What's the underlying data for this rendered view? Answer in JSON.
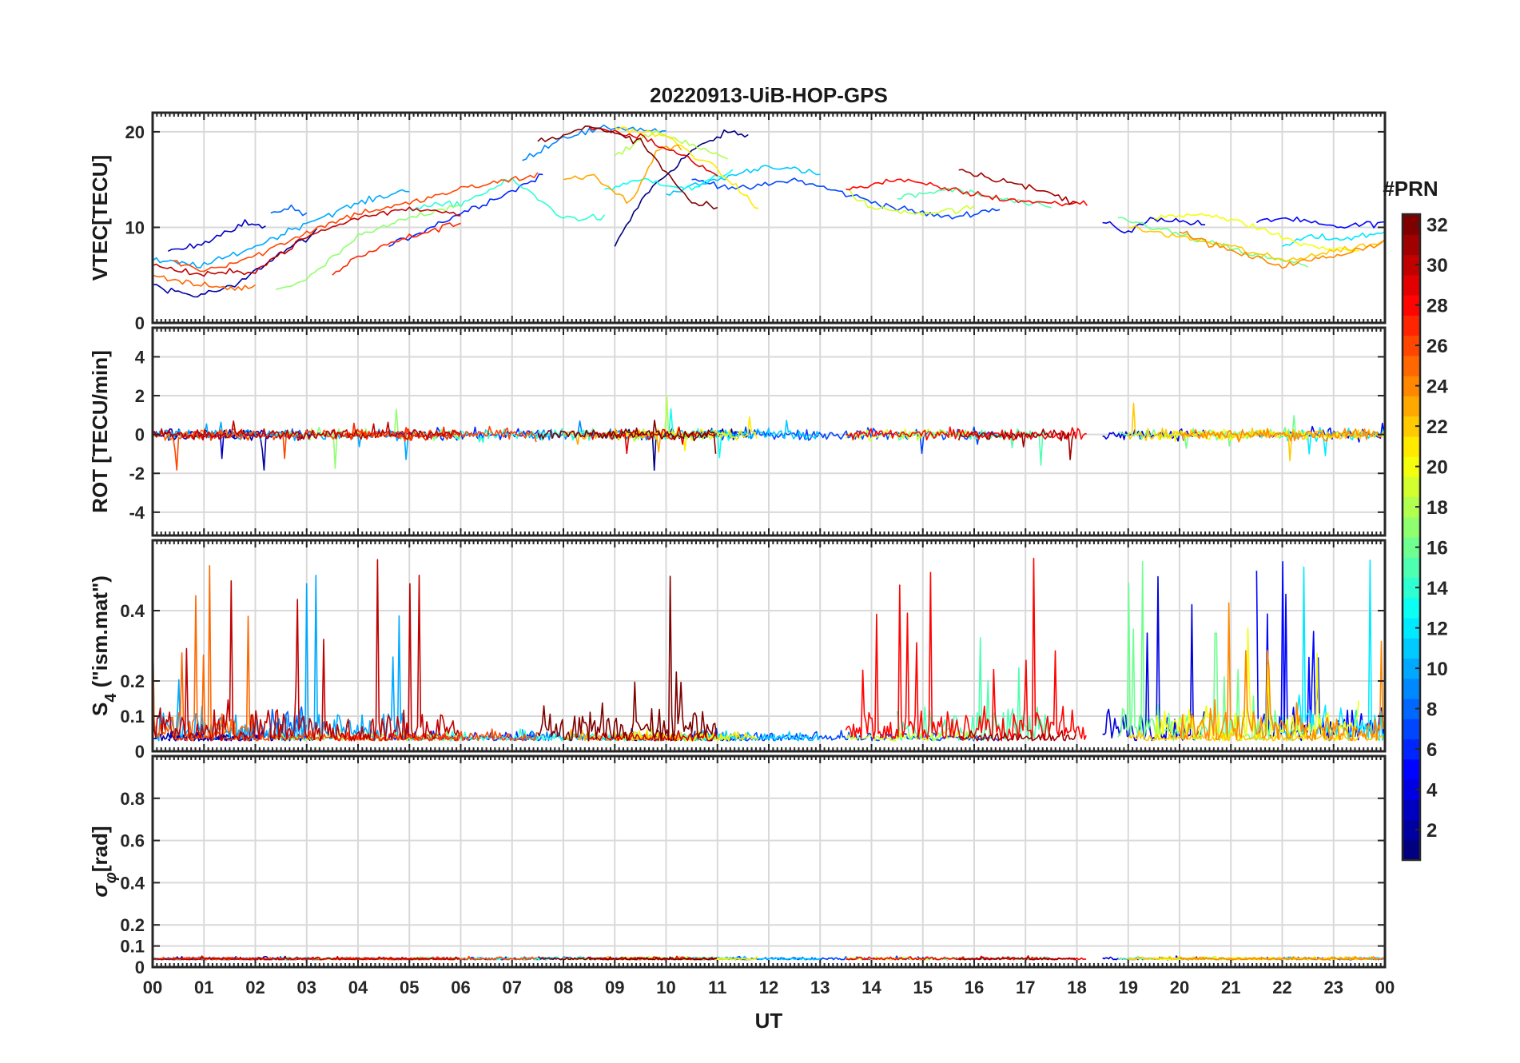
{
  "title": "20220913-UiB-HOP-GPS",
  "chart_data": {
    "type": "line",
    "title": "20220913-UiB-HOP-GPS",
    "xlabel": "UT",
    "x_ticks": [
      "00",
      "01",
      "02",
      "03",
      "04",
      "05",
      "06",
      "07",
      "08",
      "09",
      "10",
      "11",
      "12",
      "13",
      "14",
      "15",
      "16",
      "17",
      "18",
      "19",
      "20",
      "21",
      "22",
      "23",
      "00"
    ],
    "xlim": [
      0,
      24
    ],
    "grid": true,
    "panels": [
      {
        "ylabel": "VTEC[TECU]",
        "ylim": [
          0,
          22
        ],
        "y_ticks": [
          {
            "v": 0,
            "t": "0"
          },
          {
            "v": 10,
            "t": "10"
          },
          {
            "v": 20,
            "t": "20"
          }
        ]
      },
      {
        "ylabel": "ROT [TECU/min]",
        "ylim": [
          -5.2,
          5.5
        ],
        "y_ticks": [
          {
            "v": -4,
            "t": "-4"
          },
          {
            "v": -2,
            "t": "-2"
          },
          {
            "v": 0,
            "t": "0"
          },
          {
            "v": 2,
            "t": "2"
          },
          {
            "v": 4,
            "t": "4"
          }
        ]
      },
      {
        "ylabel": "S4 (\"ism.mat\")",
        "ylabel_main": "S",
        "ylabel_sub": "4",
        "ylabel_rest": " (\"ism.mat\")",
        "ylim": [
          0,
          0.6
        ],
        "y_ticks": [
          {
            "v": 0,
            "t": "0"
          },
          {
            "v": 0.1,
            "t": "0.1"
          },
          {
            "v": 0.2,
            "t": "0.2"
          },
          {
            "v": 0.4,
            "t": "0.4"
          }
        ]
      },
      {
        "ylabel": "σφ[rad]",
        "ylabel_main": "σ",
        "ylabel_sub": "φ",
        "ylabel_rest": "[rad]",
        "ylim": [
          0,
          1
        ],
        "y_ticks": [
          {
            "v": 0,
            "t": "0"
          },
          {
            "v": 0.1,
            "t": "0.1"
          },
          {
            "v": 0.2,
            "t": "0.2"
          },
          {
            "v": 0.4,
            "t": "0.4"
          },
          {
            "v": 0.6,
            "t": "0.6"
          },
          {
            "v": 0.8,
            "t": "0.8"
          }
        ]
      }
    ],
    "colorbar": {
      "label": "#PRN",
      "range": [
        1,
        32
      ],
      "ticks": [
        "2",
        "4",
        "6",
        "8",
        "10",
        "12",
        "14",
        "16",
        "18",
        "20",
        "22",
        "24",
        "26",
        "28",
        "30",
        "32"
      ],
      "colormap": "jet"
    },
    "series": [
      {
        "prn": 1,
        "vtec": [
          [
            9.0,
            8.0
          ],
          [
            9.6,
            13.5
          ],
          [
            10.5,
            18.0
          ],
          [
            11.2,
            20.0
          ],
          [
            11.6,
            19.6
          ]
        ]
      },
      {
        "prn": 2,
        "vtec": [
          [
            0.0,
            4.0
          ],
          [
            0.8,
            2.8
          ],
          [
            1.6,
            3.8
          ],
          [
            2.4,
            7.0
          ],
          [
            3.2,
            9.5
          ]
        ]
      },
      {
        "prn": 3,
        "vtec": [
          [
            0.3,
            7.5
          ],
          [
            0.8,
            8.0
          ],
          [
            1.4,
            9.5
          ],
          [
            1.8,
            10.5
          ],
          [
            2.2,
            10.0
          ]
        ]
      },
      {
        "prn": 4,
        "vtec": [
          [
            18.5,
            10.5
          ],
          [
            19.0,
            9.5
          ],
          [
            19.5,
            11.0
          ],
          [
            20.5,
            10.3
          ]
        ]
      },
      {
        "prn": 5,
        "vtec": [
          [
            21.5,
            10.5
          ],
          [
            22.0,
            11.0
          ],
          [
            23.0,
            10.0
          ],
          [
            24.0,
            10.5
          ]
        ]
      },
      {
        "prn": 6,
        "vtec": [
          [
            4.6,
            8.0
          ],
          [
            5.2,
            9.5
          ],
          [
            6.0,
            11.5
          ],
          [
            7.0,
            13.8
          ],
          [
            7.6,
            15.5
          ]
        ]
      },
      {
        "prn": 7,
        "vtec": [
          [
            10.5,
            15.0
          ],
          [
            11.5,
            14.0
          ],
          [
            12.5,
            15.0
          ],
          [
            13.5,
            13.5
          ],
          [
            14.5,
            12.0
          ],
          [
            15.5,
            11.0
          ],
          [
            16.5,
            12.0
          ]
        ]
      },
      {
        "prn": 8,
        "vtec": [
          [
            2.3,
            11.5
          ],
          [
            2.7,
            12.0
          ],
          [
            3.0,
            11.3
          ]
        ]
      },
      {
        "prn": 9,
        "vtec": [
          [
            7.2,
            17.0
          ],
          [
            8.0,
            19.5
          ],
          [
            9.0,
            20.5
          ],
          [
            10.0,
            20.0
          ]
        ]
      },
      {
        "prn": 10,
        "vtec": [
          [
            0.0,
            6.5
          ],
          [
            1.0,
            6.0
          ],
          [
            2.0,
            8.0
          ],
          [
            3.0,
            10.5
          ],
          [
            4.0,
            12.5
          ],
          [
            5.0,
            14.0
          ]
        ]
      },
      {
        "prn": 11,
        "vtec": [
          [
            10.0,
            13.5
          ],
          [
            11.0,
            15.0
          ],
          [
            12.0,
            16.5
          ],
          [
            13.0,
            15.5
          ]
        ]
      },
      {
        "prn": 12,
        "vtec": [
          [
            22.0,
            8.0
          ],
          [
            22.5,
            9.0
          ],
          [
            23.2,
            8.8
          ],
          [
            24.0,
            9.5
          ]
        ]
      },
      {
        "prn": 13,
        "vtec": [
          [
            8.8,
            14.0
          ],
          [
            9.6,
            15.0
          ],
          [
            10.5,
            14.0
          ],
          [
            11.3,
            16.0
          ]
        ]
      },
      {
        "prn": 14,
        "vtec": [
          [
            5.0,
            12.0
          ],
          [
            6.0,
            12.5
          ],
          [
            7.0,
            15.0
          ],
          [
            8.0,
            11.0
          ],
          [
            8.8,
            11.0
          ]
        ]
      },
      {
        "prn": 15,
        "vtec": [
          [
            14.5,
            13.0
          ],
          [
            15.5,
            14.0
          ],
          [
            16.5,
            13.0
          ],
          [
            17.5,
            12.0
          ]
        ]
      },
      {
        "prn": 16,
        "vtec": [
          [
            18.8,
            11.0
          ],
          [
            19.5,
            10.0
          ],
          [
            20.5,
            8.5
          ],
          [
            21.5,
            7.0
          ],
          [
            22.5,
            6.0
          ]
        ]
      },
      {
        "prn": 17,
        "vtec": [
          [
            2.4,
            3.5
          ],
          [
            3.0,
            4.5
          ],
          [
            4.0,
            9.0
          ],
          [
            5.0,
            11.0
          ],
          [
            6.0,
            12.5
          ]
        ]
      },
      {
        "prn": 18,
        "vtec": [
          [
            9.0,
            17.5
          ],
          [
            9.8,
            20.0
          ],
          [
            10.6,
            18.5
          ],
          [
            11.2,
            17.0
          ]
        ]
      },
      {
        "prn": 19,
        "vtec": [
          [
            13.5,
            14.0
          ],
          [
            14.0,
            12.0
          ],
          [
            15.0,
            11.5
          ],
          [
            16.0,
            12.0
          ]
        ]
      },
      {
        "prn": 20,
        "vtec": [
          [
            19.5,
            11.0
          ],
          [
            20.5,
            11.5
          ],
          [
            21.5,
            10.0
          ],
          [
            22.5,
            8.0
          ],
          [
            23.5,
            7.5
          ]
        ]
      },
      {
        "prn": 21,
        "vtec": [
          [
            9.0,
            20.5
          ],
          [
            10.0,
            19.5
          ],
          [
            11.0,
            16.0
          ],
          [
            11.8,
            12.0
          ]
        ]
      },
      {
        "prn": 22,
        "vtec": [
          [
            19.0,
            10.0
          ],
          [
            20.0,
            9.0
          ],
          [
            21.0,
            8.0
          ],
          [
            22.0,
            6.5
          ],
          [
            23.0,
            7.5
          ],
          [
            24.0,
            8.5
          ]
        ]
      },
      {
        "prn": 23,
        "vtec": [
          [
            8.0,
            15.0
          ],
          [
            8.6,
            15.5
          ],
          [
            9.3,
            12.5
          ],
          [
            9.8,
            18.0
          ],
          [
            10.3,
            18.5
          ]
        ]
      },
      {
        "prn": 24,
        "vtec": [
          [
            20.0,
            9.5
          ],
          [
            21.0,
            7.5
          ],
          [
            22.0,
            6.0
          ],
          [
            23.0,
            7.0
          ],
          [
            24.0,
            8.5
          ]
        ]
      },
      {
        "prn": 25,
        "vtec": [
          [
            0.0,
            5.0
          ],
          [
            0.8,
            4.0
          ],
          [
            1.6,
            3.6
          ],
          [
            2.0,
            3.8
          ]
        ]
      },
      {
        "prn": 26,
        "vtec": [
          [
            0.4,
            6.5
          ],
          [
            1.0,
            5.5
          ],
          [
            2.0,
            7.0
          ],
          [
            3.0,
            9.5
          ],
          [
            4.0,
            11.5
          ],
          [
            5.0,
            12.5
          ],
          [
            6.0,
            14.0
          ],
          [
            7.0,
            15.0
          ],
          [
            7.5,
            15.5
          ]
        ]
      },
      {
        "prn": 27,
        "vtec": [
          [
            3.5,
            5.0
          ],
          [
            4.0,
            7.0
          ],
          [
            5.0,
            9.0
          ],
          [
            6.0,
            10.5
          ]
        ]
      },
      {
        "prn": 28,
        "vtec": [
          [
            13.5,
            14.0
          ],
          [
            14.5,
            15.0
          ],
          [
            15.5,
            14.0
          ],
          [
            16.5,
            13.0
          ],
          [
            17.5,
            12.5
          ],
          [
            18.2,
            12.5
          ]
        ]
      },
      {
        "prn": 29,
        "vtec": [
          [
            8.5,
            20.5
          ],
          [
            9.5,
            19.5
          ],
          [
            10.5,
            17.0
          ],
          [
            11.0,
            15.5
          ]
        ]
      },
      {
        "prn": 30,
        "vtec": [
          [
            0.0,
            6.0
          ],
          [
            1.0,
            5.0
          ],
          [
            2.0,
            5.5
          ],
          [
            3.0,
            9.0
          ],
          [
            4.0,
            11.0
          ],
          [
            5.0,
            12.0
          ],
          [
            6.0,
            11.5
          ]
        ]
      },
      {
        "prn": 31,
        "vtec": [
          [
            15.7,
            16.0
          ],
          [
            16.5,
            15.0
          ],
          [
            17.5,
            13.5
          ],
          [
            18.0,
            12.5
          ]
        ]
      },
      {
        "prn": 32,
        "vtec": [
          [
            7.5,
            19.0
          ],
          [
            8.5,
            20.5
          ],
          [
            9.5,
            19.0
          ],
          [
            10.5,
            12.5
          ],
          [
            11.0,
            12.0
          ]
        ]
      }
    ]
  }
}
